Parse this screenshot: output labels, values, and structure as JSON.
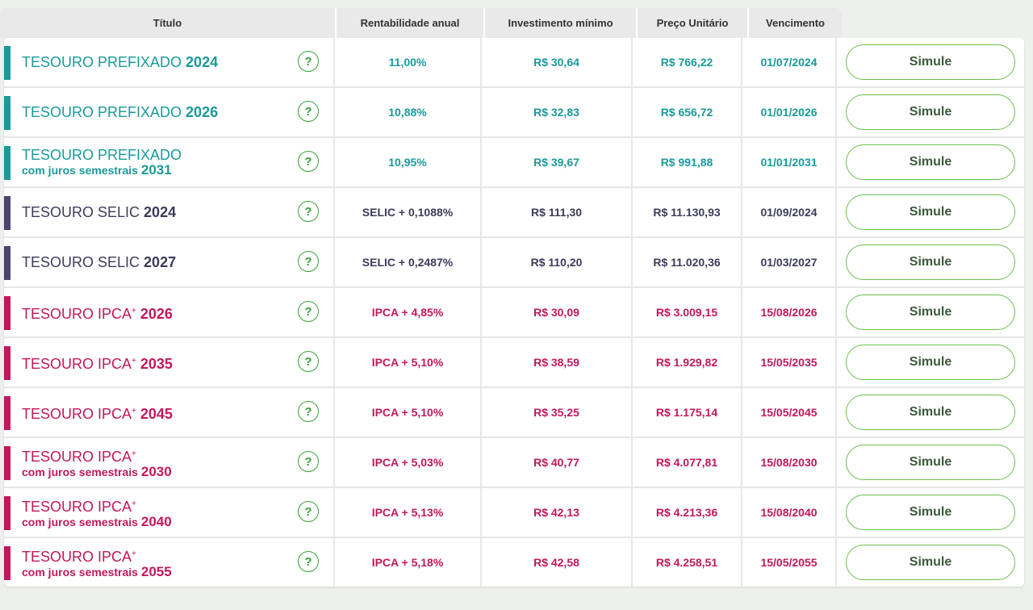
{
  "colors": {
    "teal": "#1a9a9a",
    "navy": "#4a4470",
    "pink": "#c2185b",
    "button_border": "#6cbd4f"
  },
  "header": {
    "titulo": "Título",
    "rentabilidade": "Rentabilidade anual",
    "investimento": "Investimento mínimo",
    "preco": "Preço Unitário",
    "vencimento": "Vencimento"
  },
  "help_glyph": "?",
  "simule_label": "Simule",
  "rows": [
    {
      "name": "TESOURO PREFIXADO",
      "sup": "",
      "sub": "",
      "year": "2024",
      "rent": "11,00%",
      "inv": "R$ 30,64",
      "price": "R$ 766,22",
      "venc": "01/07/2024",
      "color": "teal"
    },
    {
      "name": "TESOURO PREFIXADO",
      "sup": "",
      "sub": "",
      "year": "2026",
      "rent": "10,88%",
      "inv": "R$ 32,83",
      "price": "R$ 656,72",
      "venc": "01/01/2026",
      "color": "teal"
    },
    {
      "name": "TESOURO PREFIXADO",
      "sup": "",
      "sub": "com juros semestrais",
      "year": "2031",
      "rent": "10,95%",
      "inv": "R$ 39,67",
      "price": "R$ 991,88",
      "venc": "01/01/2031",
      "color": "teal"
    },
    {
      "name": "TESOURO SELIC",
      "sup": "",
      "sub": "",
      "year": "2024",
      "rent": "SELIC + 0,1088%",
      "inv": "R$ 111,30",
      "price": "R$ 11.130,93",
      "venc": "01/09/2024",
      "color": "navy"
    },
    {
      "name": "TESOURO SELIC",
      "sup": "",
      "sub": "",
      "year": "2027",
      "rent": "SELIC + 0,2487%",
      "inv": "R$ 110,20",
      "price": "R$ 11.020,36",
      "venc": "01/03/2027",
      "color": "navy"
    },
    {
      "name": "TESOURO IPCA",
      "sup": "+",
      "sub": "",
      "year": "2026",
      "rent": "IPCA + 4,85%",
      "inv": "R$ 30,09",
      "price": "R$ 3.009,15",
      "venc": "15/08/2026",
      "color": "pink"
    },
    {
      "name": "TESOURO IPCA",
      "sup": "+",
      "sub": "",
      "year": "2035",
      "rent": "IPCA + 5,10%",
      "inv": "R$ 38,59",
      "price": "R$ 1.929,82",
      "venc": "15/05/2035",
      "color": "pink"
    },
    {
      "name": "TESOURO IPCA",
      "sup": "+",
      "sub": "",
      "year": "2045",
      "rent": "IPCA + 5,10%",
      "inv": "R$ 35,25",
      "price": "R$ 1.175,14",
      "venc": "15/05/2045",
      "color": "pink"
    },
    {
      "name": "TESOURO IPCA",
      "sup": "+",
      "sub": "com juros semestrais",
      "year": "2030",
      "rent": "IPCA + 5,03%",
      "inv": "R$ 40,77",
      "price": "R$ 4.077,81",
      "venc": "15/08/2030",
      "color": "pink"
    },
    {
      "name": "TESOURO IPCA",
      "sup": "+",
      "sub": "com juros semestrais",
      "year": "2040",
      "rent": "IPCA + 5,13%",
      "inv": "R$ 42,13",
      "price": "R$ 4.213,36",
      "venc": "15/08/2040",
      "color": "pink"
    },
    {
      "name": "TESOURO IPCA",
      "sup": "+",
      "sub": "com juros semestrais",
      "year": "2055",
      "rent": "IPCA + 5,18%",
      "inv": "R$ 42,58",
      "price": "R$ 4.258,51",
      "venc": "15/05/2055",
      "color": "pink"
    }
  ]
}
